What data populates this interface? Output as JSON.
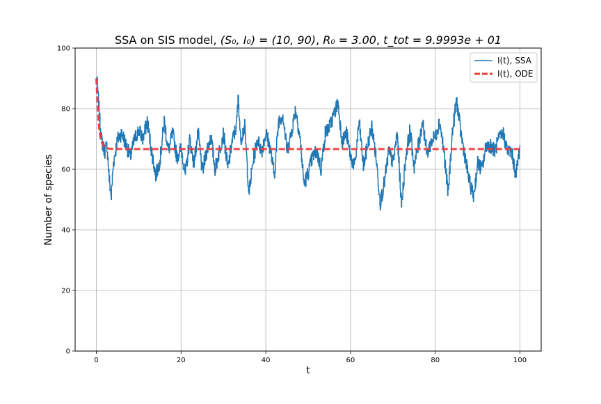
{
  "chart_data": {
    "type": "line",
    "title": "SSA on SIS model, $(S_0, I_0) = (10, 90)$, $R_0 = 3.00$, $t_{tot} = 9.9993e+01$",
    "title_parts": {
      "prefix": "SSA on SIS model, ",
      "s0_i0": "(S₀, I₀) = (10, 90)",
      "r0": "R₀ = 3.00",
      "ttot": "t_tot = 9.9993e + 01"
    },
    "xlabel": "t",
    "ylabel": "Number of species",
    "xlim": [
      -5,
      105
    ],
    "ylim": [
      0,
      100
    ],
    "xticks": [
      0,
      20,
      40,
      60,
      80,
      100
    ],
    "yticks": [
      0,
      20,
      40,
      60,
      80,
      100
    ],
    "grid": true,
    "legend_position": "top-right",
    "series": [
      {
        "name": "I(t), SSA",
        "color": "#1f77b4",
        "style": "solid",
        "x": [
          0,
          0.2,
          0.4,
          0.6,
          0.8,
          1,
          1.2,
          1.5,
          2,
          2.5,
          3,
          3.5,
          4,
          5,
          6,
          7,
          8,
          9,
          10,
          11,
          12,
          13,
          14,
          15,
          16,
          17,
          18,
          19,
          20,
          21,
          22,
          23,
          24,
          25,
          26,
          27,
          28,
          29,
          30,
          31,
          32,
          33,
          33.5,
          34,
          35,
          36,
          37,
          38,
          39,
          40,
          41,
          42,
          43,
          44,
          45,
          46,
          47,
          48,
          49,
          50,
          51,
          52,
          53,
          54,
          55,
          56,
          57,
          58,
          59,
          60,
          61,
          62,
          63,
          64,
          65,
          66,
          67,
          68,
          69,
          70,
          71,
          72,
          73,
          74,
          75,
          76,
          77,
          78,
          79,
          80,
          81,
          82,
          83,
          84,
          85,
          86,
          87,
          88,
          89,
          90,
          91,
          92,
          93,
          94,
          95,
          96,
          97,
          98,
          99,
          99.99
        ],
        "values": [
          90,
          88,
          84,
          80,
          76,
          73,
          70,
          68,
          66,
          68,
          57,
          51,
          62,
          70,
          72,
          68,
          64,
          70,
          73,
          70,
          76,
          66,
          58,
          63,
          76,
          66,
          72,
          64,
          67,
          58,
          70,
          62,
          72,
          59,
          66,
          71,
          60,
          66,
          72,
          60,
          69,
          74,
          84,
          70,
          74,
          52,
          63,
          70,
          66,
          72,
          67,
          58,
          76,
          78,
          66,
          72,
          80,
          71,
          55,
          59,
          64,
          66,
          60,
          72,
          74,
          78,
          82,
          69,
          72,
          64,
          61,
          76,
          61,
          68,
          74,
          64,
          49,
          56,
          66,
          62,
          72,
          48,
          64,
          73,
          61,
          68,
          76,
          65,
          69,
          71,
          76,
          66,
          52,
          72,
          83,
          72,
          64,
          56,
          51,
          62,
          60,
          68,
          68,
          66,
          70,
          72,
          66,
          66,
          58,
          68
        ]
      },
      {
        "name": "I(t), ODE",
        "color": "#f03b3b",
        "style": "dashed",
        "x": [
          0,
          0.1,
          0.2,
          0.3,
          0.4,
          0.5,
          0.7,
          1,
          1.5,
          2,
          3,
          5,
          10,
          20,
          40,
          60,
          80,
          99.99
        ],
        "values": [
          90,
          87.5,
          84.5,
          81.5,
          79,
          76.5,
          73,
          70.4,
          68.2,
          67.3,
          66.8,
          66.7,
          66.67,
          66.67,
          66.67,
          66.67,
          66.67,
          66.67
        ]
      }
    ]
  }
}
